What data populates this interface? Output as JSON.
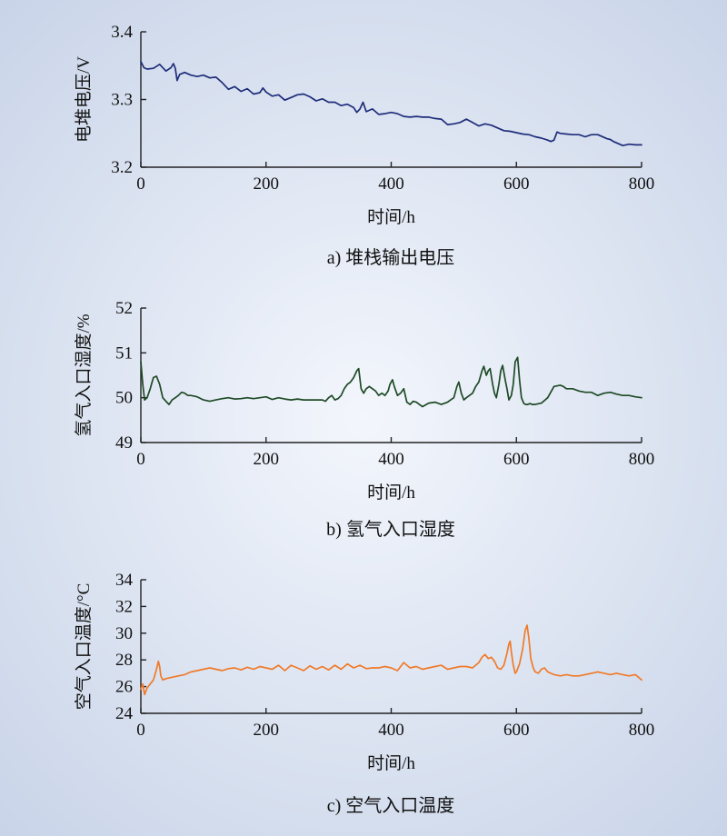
{
  "chart_data": [
    {
      "type": "line",
      "caption": "a) 堆栈输出电压",
      "xlabel": "时间/h",
      "ylabel": "电堆电压/V",
      "xlim": [
        0,
        800
      ],
      "ylim": [
        3.2,
        3.4
      ],
      "xticks": [
        0,
        200,
        400,
        600,
        800
      ],
      "yticks": [
        "3.2",
        "3.3",
        "3.4"
      ],
      "grid": false,
      "color": "#1f2d7a",
      "series": [
        {
          "x": [
            0,
            5,
            10,
            20,
            30,
            40,
            48,
            52,
            55,
            58,
            62,
            70,
            80,
            90,
            100,
            110,
            120,
            130,
            140,
            150,
            160,
            170,
            180,
            190,
            195,
            200,
            210,
            220,
            230,
            240,
            250,
            260,
            270,
            280,
            290,
            300,
            310,
            320,
            330,
            340,
            345,
            350,
            355,
            360,
            370,
            380,
            390,
            400,
            410,
            420,
            430,
            440,
            450,
            460,
            470,
            480,
            490,
            500,
            510,
            520,
            530,
            540,
            550,
            560,
            570,
            580,
            590,
            600,
            610,
            620,
            630,
            640,
            650,
            655,
            660,
            665,
            670,
            680,
            690,
            700,
            710,
            720,
            730,
            740,
            745,
            750,
            755,
            760,
            770,
            780,
            790,
            800
          ],
          "values": [
            3.356,
            3.347,
            3.345,
            3.346,
            3.352,
            3.342,
            3.347,
            3.353,
            3.346,
            3.328,
            3.337,
            3.34,
            3.336,
            3.334,
            3.336,
            3.332,
            3.333,
            3.325,
            3.315,
            3.319,
            3.312,
            3.316,
            3.308,
            3.31,
            3.317,
            3.311,
            3.305,
            3.307,
            3.299,
            3.303,
            3.307,
            3.308,
            3.304,
            3.298,
            3.301,
            3.296,
            3.296,
            3.291,
            3.293,
            3.288,
            3.281,
            3.286,
            3.296,
            3.282,
            3.286,
            3.278,
            3.279,
            3.281,
            3.279,
            3.275,
            3.274,
            3.275,
            3.274,
            3.274,
            3.272,
            3.271,
            3.263,
            3.264,
            3.266,
            3.271,
            3.266,
            3.261,
            3.264,
            3.262,
            3.258,
            3.254,
            3.253,
            3.251,
            3.249,
            3.248,
            3.245,
            3.243,
            3.24,
            3.238,
            3.24,
            3.252,
            3.25,
            3.249,
            3.248,
            3.248,
            3.245,
            3.248,
            3.248,
            3.244,
            3.242,
            3.241,
            3.238,
            3.236,
            3.232,
            3.234,
            3.233,
            3.233
          ]
        }
      ]
    },
    {
      "type": "line",
      "caption": "b) 氢气入口湿度",
      "xlabel": "时间/h",
      "ylabel": "氢气入口湿度/%",
      "xlim": [
        0,
        800
      ],
      "ylim": [
        49,
        52
      ],
      "xticks": [
        0,
        200,
        400,
        600,
        800
      ],
      "yticks": [
        "49",
        "50",
        "51",
        "52"
      ],
      "grid": false,
      "color": "#1e4a26",
      "series": [
        {
          "x": [
            0,
            3,
            6,
            10,
            15,
            20,
            25,
            30,
            35,
            40,
            45,
            50,
            55,
            60,
            65,
            70,
            75,
            80,
            90,
            100,
            110,
            120,
            130,
            140,
            150,
            160,
            170,
            180,
            190,
            200,
            210,
            220,
            230,
            240,
            250,
            260,
            270,
            280,
            290,
            295,
            300,
            305,
            310,
            315,
            320,
            325,
            330,
            335,
            340,
            345,
            348,
            352,
            356,
            360,
            365,
            370,
            375,
            380,
            385,
            390,
            395,
            398,
            402,
            405,
            410,
            415,
            420,
            425,
            430,
            435,
            440,
            445,
            450,
            460,
            470,
            480,
            490,
            495,
            500,
            505,
            508,
            512,
            516,
            520,
            525,
            530,
            535,
            540,
            545,
            548,
            552,
            555,
            558,
            562,
            565,
            568,
            572,
            575,
            578,
            582,
            585,
            588,
            592,
            595,
            598,
            602,
            605,
            608,
            612,
            615,
            618,
            622,
            625,
            630,
            640,
            650,
            660,
            670,
            675,
            680,
            690,
            700,
            710,
            720,
            730,
            740,
            750,
            760,
            770,
            780,
            790,
            800
          ],
          "values": [
            50.8,
            50.3,
            49.95,
            50.0,
            50.2,
            50.45,
            50.48,
            50.3,
            50.0,
            49.92,
            49.85,
            49.95,
            50.0,
            50.05,
            50.12,
            50.1,
            50.05,
            50.05,
            50.02,
            49.95,
            49.92,
            49.95,
            49.98,
            50.0,
            49.97,
            49.98,
            50.0,
            49.98,
            50.0,
            50.02,
            49.96,
            50.0,
            49.97,
            49.95,
            49.97,
            49.95,
            49.95,
            49.95,
            49.95,
            49.92,
            50.0,
            50.05,
            49.95,
            49.98,
            50.05,
            50.2,
            50.3,
            50.35,
            50.45,
            50.6,
            50.65,
            50.2,
            50.1,
            50.2,
            50.25,
            50.2,
            50.15,
            50.05,
            50.1,
            50.05,
            50.15,
            50.3,
            50.4,
            50.25,
            50.05,
            50.1,
            50.2,
            49.9,
            49.85,
            49.92,
            49.9,
            49.85,
            49.8,
            49.88,
            49.9,
            49.85,
            49.9,
            49.95,
            50.0,
            50.25,
            50.35,
            50.1,
            49.95,
            50.0,
            50.05,
            50.1,
            50.25,
            50.35,
            50.6,
            50.7,
            50.5,
            50.6,
            50.65,
            50.3,
            50.1,
            50.0,
            50.3,
            50.6,
            50.72,
            50.4,
            50.2,
            49.95,
            50.05,
            50.3,
            50.8,
            50.9,
            50.4,
            50.0,
            49.87,
            49.85,
            49.85,
            49.87,
            49.85,
            49.85,
            49.88,
            50.0,
            50.25,
            50.28,
            50.25,
            50.2,
            50.2,
            50.15,
            50.12,
            50.12,
            50.05,
            50.1,
            50.12,
            50.08,
            50.05,
            50.05,
            50.02,
            50.0
          ]
        }
      ]
    },
    {
      "type": "line",
      "caption": "c) 空气入口温度",
      "xlabel": "时间/h",
      "ylabel": "空气入口温度/°C",
      "xlim": [
        0,
        800
      ],
      "ylim": [
        24,
        34
      ],
      "xticks": [
        0,
        200,
        400,
        600,
        800
      ],
      "yticks": [
        "24",
        "26",
        "28",
        "30",
        "32",
        "34"
      ],
      "grid": false,
      "color": "#f07a2a",
      "series": [
        {
          "x": [
            0,
            3,
            6,
            10,
            15,
            20,
            25,
            28,
            30,
            32,
            35,
            40,
            50,
            60,
            70,
            80,
            90,
            100,
            110,
            120,
            130,
            140,
            150,
            160,
            170,
            180,
            190,
            200,
            210,
            220,
            230,
            240,
            250,
            260,
            270,
            280,
            290,
            300,
            310,
            320,
            330,
            340,
            350,
            360,
            370,
            380,
            390,
            400,
            410,
            420,
            430,
            440,
            450,
            460,
            470,
            480,
            490,
            500,
            510,
            520,
            530,
            540,
            545,
            550,
            555,
            560,
            565,
            570,
            575,
            580,
            585,
            588,
            590,
            592,
            595,
            598,
            600,
            605,
            610,
            614,
            617,
            620,
            623,
            627,
            630,
            635,
            640,
            645,
            650,
            655,
            660,
            665,
            670,
            680,
            690,
            700,
            710,
            720,
            730,
            740,
            750,
            760,
            770,
            780,
            790,
            795,
            800
          ],
          "values": [
            25.8,
            26.2,
            25.4,
            25.9,
            26.2,
            26.5,
            27.3,
            27.9,
            27.5,
            26.8,
            26.5,
            26.6,
            26.7,
            26.8,
            26.9,
            27.1,
            27.2,
            27.3,
            27.4,
            27.3,
            27.2,
            27.35,
            27.4,
            27.25,
            27.45,
            27.3,
            27.5,
            27.4,
            27.3,
            27.6,
            27.2,
            27.6,
            27.4,
            27.2,
            27.55,
            27.3,
            27.5,
            27.25,
            27.6,
            27.3,
            27.7,
            27.4,
            27.6,
            27.35,
            27.4,
            27.4,
            27.5,
            27.4,
            27.2,
            27.8,
            27.4,
            27.5,
            27.3,
            27.4,
            27.5,
            27.6,
            27.3,
            27.4,
            27.5,
            27.5,
            27.4,
            27.8,
            28.2,
            28.4,
            28.1,
            28.2,
            27.9,
            27.4,
            27.3,
            27.6,
            28.5,
            29.2,
            29.4,
            28.6,
            27.6,
            27.0,
            27.1,
            27.7,
            28.8,
            30.2,
            30.6,
            29.6,
            28.1,
            27.4,
            27.1,
            27.0,
            27.3,
            27.4,
            27.1,
            27.0,
            26.9,
            26.85,
            26.8,
            26.9,
            26.8,
            26.8,
            26.9,
            27.0,
            27.1,
            27.0,
            26.9,
            27.0,
            26.9,
            26.8,
            26.9,
            26.7,
            26.5
          ]
        }
      ]
    }
  ]
}
